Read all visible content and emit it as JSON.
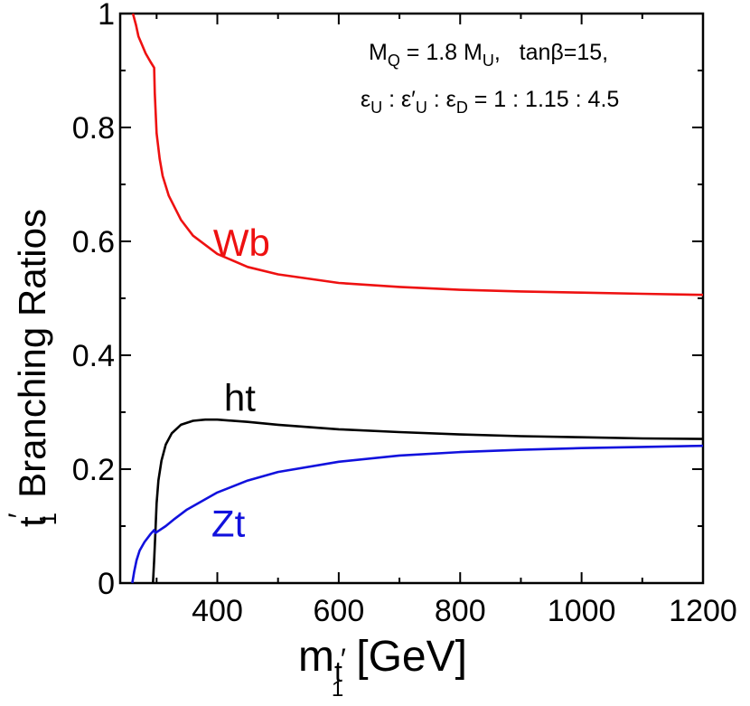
{
  "chart_data": {
    "type": "line",
    "xlabel": {
      "main": "m",
      "subscript": "t",
      "subscript_prime": "′",
      "subsubscript": "1",
      "units": "[GeV]"
    },
    "ylabel": {
      "prefix": "t",
      "prefix_prime": "′",
      "prefix_subscript": "1",
      "text": "Branching Ratios"
    },
    "xlim": [
      240,
      1200
    ],
    "ylim": [
      0,
      1
    ],
    "x_ticks": [
      400,
      600,
      800,
      1000,
      1200
    ],
    "y_ticks": [
      0,
      0.2,
      0.4,
      0.6,
      0.8,
      1
    ],
    "y_tick_labels": [
      "0",
      "0.2",
      "0.4",
      "0.6",
      "0.8",
      "1"
    ],
    "annotation": {
      "line1_parts": [
        "M",
        "Q",
        " = 1.8 M",
        "U",
        ",   tanβ=15,"
      ],
      "line2_parts": [
        "ε",
        "U",
        " : ε′",
        "U",
        " : ε",
        "D",
        " = 1 : 1.15 : 4.5"
      ]
    },
    "series": [
      {
        "name": "Wb",
        "color": "#ee1111",
        "label_at": [
          440,
          0.575
        ],
        "points": [
          [
            261,
            1.0
          ],
          [
            266,
            0.98
          ],
          [
            270,
            0.96
          ],
          [
            276,
            0.945
          ],
          [
            282,
            0.93
          ],
          [
            290,
            0.915
          ],
          [
            296,
            0.905
          ],
          [
            297,
            0.86
          ],
          [
            300,
            0.79
          ],
          [
            305,
            0.745
          ],
          [
            310,
            0.715
          ],
          [
            320,
            0.68
          ],
          [
            340,
            0.638
          ],
          [
            360,
            0.61
          ],
          [
            400,
            0.578
          ],
          [
            450,
            0.555
          ],
          [
            500,
            0.542
          ],
          [
            600,
            0.527
          ],
          [
            700,
            0.52
          ],
          [
            800,
            0.515
          ],
          [
            900,
            0.512
          ],
          [
            1000,
            0.51
          ],
          [
            1100,
            0.508
          ],
          [
            1200,
            0.506
          ]
        ]
      },
      {
        "name": "ht",
        "color": "#000000",
        "label_at": [
          437,
          0.302
        ],
        "points": [
          [
            294,
            0
          ],
          [
            296,
            0.04
          ],
          [
            298,
            0.09
          ],
          [
            300,
            0.14
          ],
          [
            303,
            0.18
          ],
          [
            308,
            0.215
          ],
          [
            315,
            0.243
          ],
          [
            325,
            0.263
          ],
          [
            340,
            0.278
          ],
          [
            360,
            0.285
          ],
          [
            380,
            0.287
          ],
          [
            400,
            0.287
          ],
          [
            450,
            0.283
          ],
          [
            500,
            0.278
          ],
          [
            600,
            0.27
          ],
          [
            700,
            0.265
          ],
          [
            800,
            0.261
          ],
          [
            900,
            0.258
          ],
          [
            1000,
            0.256
          ],
          [
            1100,
            0.254
          ],
          [
            1200,
            0.253
          ]
        ]
      },
      {
        "name": "Zt",
        "color": "#1111dd",
        "label_at": [
          418,
          0.082
        ],
        "points": [
          [
            260,
            0
          ],
          [
            263,
            0.02
          ],
          [
            267,
            0.04
          ],
          [
            272,
            0.057
          ],
          [
            280,
            0.072
          ],
          [
            290,
            0.086
          ],
          [
            296,
            0.093
          ],
          [
            298,
            0.088
          ],
          [
            305,
            0.093
          ],
          [
            315,
            0.1
          ],
          [
            330,
            0.113
          ],
          [
            350,
            0.129
          ],
          [
            400,
            0.159
          ],
          [
            450,
            0.18
          ],
          [
            500,
            0.195
          ],
          [
            600,
            0.213
          ],
          [
            700,
            0.224
          ],
          [
            800,
            0.23
          ],
          [
            900,
            0.234
          ],
          [
            1000,
            0.237
          ],
          [
            1100,
            0.239
          ],
          [
            1200,
            0.241
          ]
        ]
      }
    ]
  }
}
